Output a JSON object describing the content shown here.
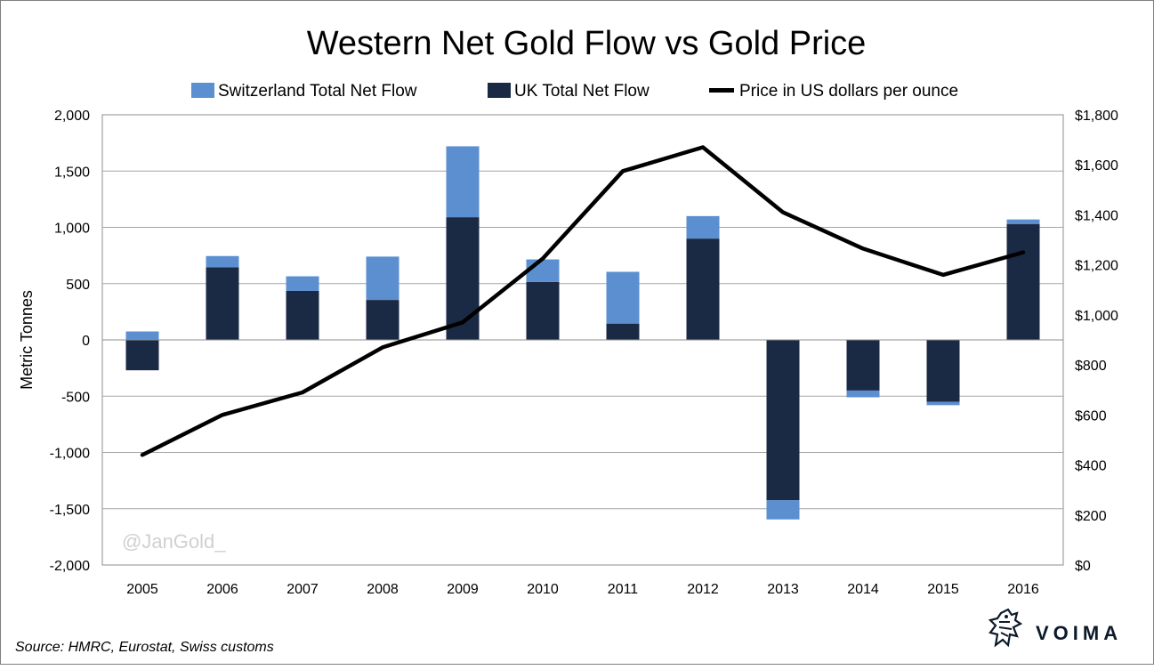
{
  "chart_data": {
    "type": "bar",
    "title": "Western Net Gold Flow vs Gold Price",
    "ylabel": "Metric Tonnes",
    "ylim": [
      -2000,
      2000
    ],
    "y2lim": [
      0,
      1800
    ],
    "yticks": [
      "2,000",
      "1,500",
      "1,000",
      "500",
      "0",
      "-500",
      "-1,000",
      "-1,500",
      "-2,000"
    ],
    "y2ticks": [
      "$1,800",
      "$1,600",
      "$1,400",
      "$1,200",
      "$1,000",
      "$800",
      "$600",
      "$400",
      "$200",
      "$0"
    ],
    "grid": true,
    "legend_position": "top",
    "stacked": true,
    "categories": [
      "2005",
      "2006",
      "2007",
      "2008",
      "2009",
      "2010",
      "2011",
      "2012",
      "2013",
      "2014",
      "2015",
      "2016"
    ],
    "series": [
      {
        "name": "Switzerland Total Net Flow",
        "kind": "bar",
        "color": "#5b8fd0",
        "values": [
          75,
          100,
          130,
          385,
          630,
          200,
          460,
          200,
          -170,
          -60,
          -30,
          40
        ]
      },
      {
        "name": "UK Total Net Flow",
        "kind": "bar",
        "color": "#1b2a44",
        "values": [
          -270,
          645,
          435,
          355,
          1090,
          515,
          145,
          900,
          -1425,
          -450,
          -550,
          1030
        ]
      },
      {
        "name": "Price in US dollars per ounce",
        "kind": "line",
        "axis": "right",
        "color": "#000000",
        "values": [
          440,
          600,
          690,
          870,
          970,
          1225,
          1575,
          1670,
          1410,
          1265,
          1160,
          1250
        ]
      }
    ]
  },
  "watermark": "@JanGold_",
  "source": "Source: HMRC, Eurostat, Swiss customs",
  "brand": {
    "name": "VOIMA",
    "logo_icon": "griffin-logo-icon"
  }
}
